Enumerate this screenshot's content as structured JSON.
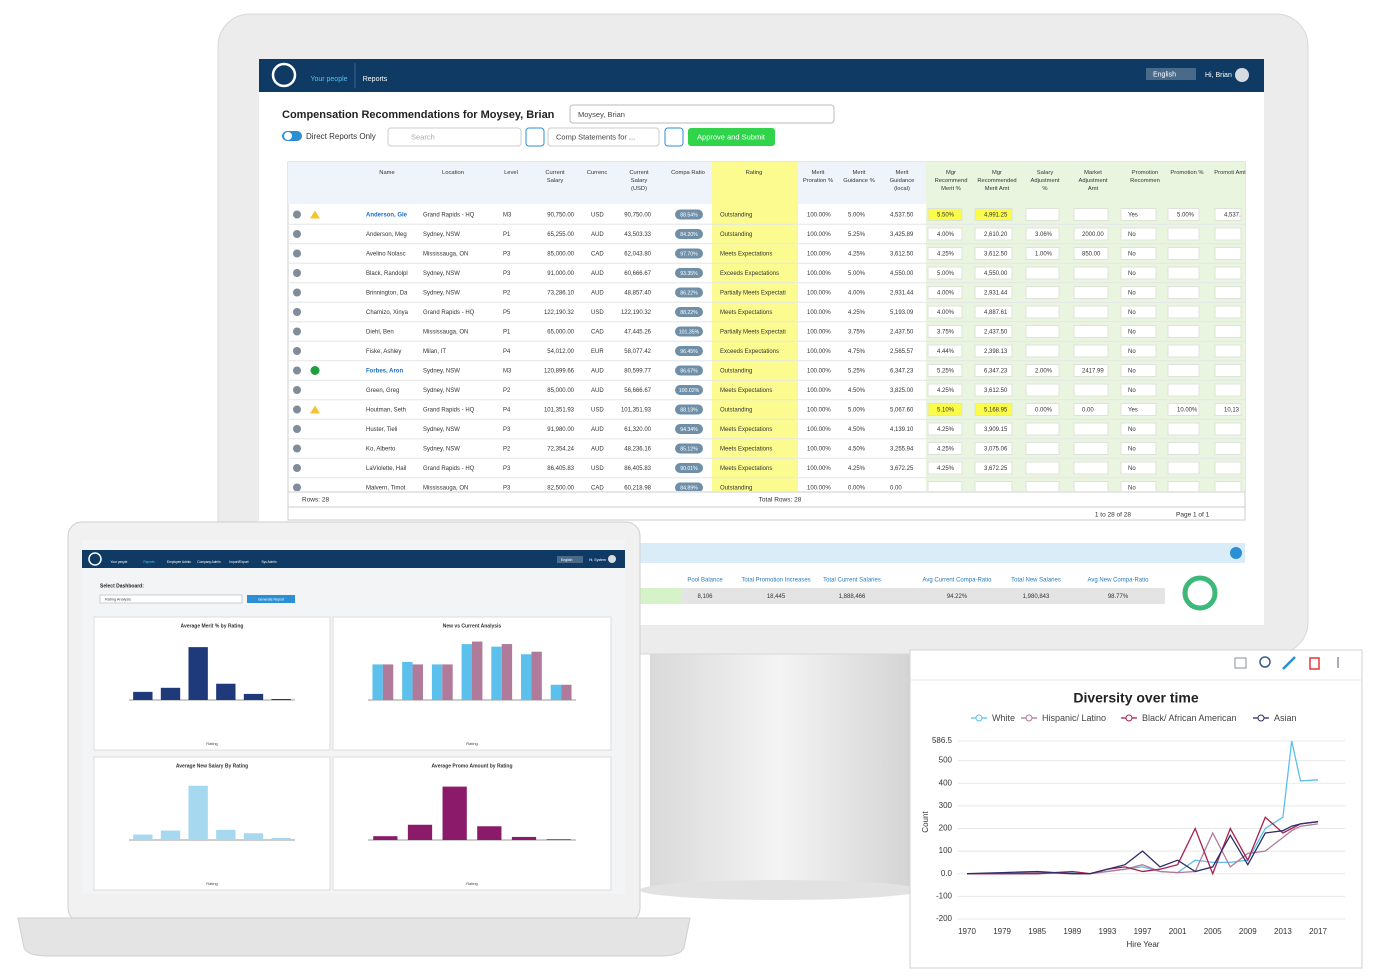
{
  "header": {
    "nav": [
      "Your people",
      "Reports"
    ],
    "language": "English",
    "greeting": "Hi, Brian"
  },
  "toolbar": {
    "title": "Compensation Recommendations for Moysey, Brian",
    "employee_select": "Moysey, Brian",
    "toggle": "Direct Reports Only",
    "search": "Search",
    "statements": "Comp Statements for ...",
    "approve": "Approve and Submit"
  },
  "table": {
    "columns": [
      "Name",
      "Location",
      "Level",
      "Current Salary",
      "Currenc",
      "Current Salary (USD)",
      "Compa Ratio",
      "Rating",
      "Merit Proration %",
      "Merit Guidance %",
      "Merit Guidance (local)",
      "Mgr Recommend Merit %",
      "Mgr Recommended Merit Amt",
      "Salary Adjustment %",
      "Market Adjustment Amt",
      "Promotion Recommen",
      "Promotion %",
      "Promoti Amt"
    ],
    "rows": [
      [
        "Anderson, Gle",
        "Grand Rapids - HQ",
        "M3",
        "90,750.00",
        "USD",
        "90,750.00",
        "88.54%",
        "Outstanding",
        "100.00%",
        "5.00%",
        "4,537.50",
        "5.50%",
        "4,991.25",
        null,
        null,
        "Yes",
        "5.00%",
        "4,537."
      ],
      [
        "Anderson, Meg",
        "Sydney, NSW",
        "P1",
        "65,255.00",
        "AUD",
        "43,503.33",
        "84.20%",
        "Outstanding",
        "100.00%",
        "5.25%",
        "3,425.89",
        "4.00%",
        "2,610.20",
        "3.06%",
        "2000.00",
        "No",
        null,
        null
      ],
      [
        "Avelino Nolasc",
        "Mississauga, ON",
        "P3",
        "85,000.00",
        "CAD",
        "62,043.80",
        "97.70%",
        "Meets Expectations",
        "100.00%",
        "4.25%",
        "3,612.50",
        "4.25%",
        "3,612.50",
        "1.00%",
        "850.00",
        "No",
        null,
        null
      ],
      [
        "Black, Randolpl",
        "Sydney, NSW",
        "P3",
        "91,000.00",
        "AUD",
        "60,666.67",
        "93.35%",
        "Exceeds Expectations",
        "100.00%",
        "5.00%",
        "4,550.00",
        "5.00%",
        "4,550.00",
        null,
        null,
        "No",
        null,
        null
      ],
      [
        "Brinnington, Da",
        "Sydney, NSW",
        "P2",
        "73,286.10",
        "AUD",
        "48,857.40",
        "86.22%",
        "Partially Meets Expectati",
        "100.00%",
        "4.00%",
        "2,931.44",
        "4.00%",
        "2,931.44",
        null,
        null,
        "No",
        null,
        null
      ],
      [
        "Chamizo, Xinya",
        "Grand Rapids - HQ",
        "P5",
        "122,190.32",
        "USD",
        "122,190.32",
        "88.22%",
        "Meets Expectations",
        "100.00%",
        "4.25%",
        "5,193.09",
        "4.00%",
        "4,887.61",
        null,
        null,
        "No",
        null,
        null
      ],
      [
        "Diehl, Ben",
        "Mississauga, ON",
        "P1",
        "65,000.00",
        "CAD",
        "47,445.26",
        "101.35%",
        "Partially Meets Expectati",
        "100.00%",
        "3.75%",
        "2,437.50",
        "3.75%",
        "2,437.50",
        null,
        null,
        "No",
        null,
        null
      ],
      [
        "Fiske, Ashley",
        "Milan, IT",
        "P4",
        "54,012.00",
        "EUR",
        "58,077.42",
        "96.45%",
        "Exceeds Expectations",
        "100.00%",
        "4.75%",
        "2,565.57",
        "4.44%",
        "2,398.13",
        null,
        null,
        "No",
        null,
        null
      ],
      [
        "Forbes, Aron",
        "Sydney, NSW",
        "M3",
        "120,899.66",
        "AUD",
        "80,599.77",
        "86.67%",
        "Outstanding",
        "100.00%",
        "5.25%",
        "6,347.23",
        "5.25%",
        "6,347.23",
        "2.00%",
        "2417.99",
        "No",
        null,
        null
      ],
      [
        "Green, Greg",
        "Sydney, NSW",
        "P2",
        "85,000.00",
        "AUD",
        "56,666.67",
        "100.02%",
        "Meets Expectations",
        "100.00%",
        "4.50%",
        "3,825.00",
        "4.25%",
        "3,612.50",
        null,
        null,
        "No",
        null,
        null
      ],
      [
        "Houtman, Seth",
        "Grand Rapids - HQ",
        "P4",
        "101,351.93",
        "USD",
        "101,351.93",
        "88.13%",
        "Outstanding",
        "100.00%",
        "5.00%",
        "5,067.60",
        "5.10%",
        "5,168.95",
        "0.00%",
        "0.00",
        "Yes",
        "10.00%",
        "10,13"
      ],
      [
        "Huster, Tieli",
        "Sydney, NSW",
        "P3",
        "91,980.00",
        "AUD",
        "61,320.00",
        "94.34%",
        "Meets Expectations",
        "100.00%",
        "4.50%",
        "4,139.10",
        "4.25%",
        "3,909.15",
        null,
        null,
        "No",
        null,
        null
      ],
      [
        "Ko, Alberto",
        "Sydney, NSW",
        "P2",
        "72,354.24",
        "AUD",
        "48,236.16",
        "85.12%",
        "Meets Expectations",
        "100.00%",
        "4.50%",
        "3,255.94",
        "4.25%",
        "3,075.06",
        null,
        null,
        "No",
        null,
        null
      ],
      [
        "LaViolette, Hail",
        "Grand Rapids - HQ",
        "P3",
        "86,405.83",
        "USD",
        "86,405.83",
        "90.01%",
        "Meets Expectations",
        "100.00%",
        "4.25%",
        "3,672.25",
        "4.25%",
        "3,672.25",
        null,
        null,
        "No",
        null,
        null
      ],
      [
        "Malvern, Timot",
        "Mississauga, ON",
        "P3",
        "82,500.00",
        "CAD",
        "60,218.98",
        "84.89%",
        "Outstanding",
        "100.00%",
        "0.00%",
        "0.00",
        null,
        null,
        null,
        null,
        "No",
        null,
        null
      ]
    ],
    "rows_label": "Rows: 28",
    "total_rows": "Total Rows: 28",
    "range": "1 to 28 of 28",
    "page": "Page 1 of 1"
  },
  "summary": {
    "headers": [
      "Pool Balance",
      "Total Promotion Increases",
      "Total Current Salaries",
      "Avg Current Compa-Ratio",
      "Total New Salaries",
      "Avg New Compa-Ratio"
    ],
    "values": [
      "8,106",
      "18,445",
      "1,888,466",
      "94.22%",
      "1,980,843",
      "98.77%"
    ]
  },
  "laptop": {
    "nav": [
      "Your people",
      "Reports",
      "Employee Admin",
      "Company Admin",
      "Import/Export",
      "Sys Admin"
    ],
    "language": "English",
    "greeting": "Hi, System",
    "select_label": "Select Dashboard:",
    "select_value": "Rating Analysis",
    "button": "Generate Report"
  },
  "chart_data": [
    {
      "type": "line",
      "title": "Diversity over time",
      "xlabel": "Hire Year",
      "ylabel": "Count",
      "x": [
        1970,
        1979,
        1985,
        1989,
        1991,
        1993,
        1995,
        1997,
        1999,
        2001,
        2003,
        2005,
        2007,
        2009,
        2011,
        2013,
        2014,
        2015,
        2017
      ],
      "xticks": [
        1970,
        1979,
        1985,
        1989,
        1993,
        1997,
        2001,
        2005,
        2009,
        2013,
        2017
      ],
      "ylim": [
        -200,
        586.5
      ],
      "yticks": [
        586.5,
        500,
        400,
        300,
        200,
        100,
        {
          "value": 0,
          "label": "0.0"
        },
        -100,
        -200
      ],
      "series": [
        {
          "name": "White",
          "color": "#5bc0eb",
          "values": [
            0,
            0,
            0,
            5,
            0,
            10,
            20,
            30,
            10,
            5,
            60,
            50,
            50,
            60,
            200,
            250,
            586.5,
            410,
            415
          ]
        },
        {
          "name": "Hispanic/ Latino",
          "color": "#b07a9a",
          "values": [
            0,
            0,
            5,
            0,
            0,
            10,
            20,
            40,
            10,
            5,
            10,
            180,
            30,
            90,
            100,
            160,
            190,
            210,
            220
          ]
        },
        {
          "name": "Black/ African American",
          "color": "#a8204f",
          "values": [
            0,
            0,
            0,
            10,
            0,
            20,
            30,
            10,
            20,
            40,
            200,
            0,
            200,
            60,
            250,
            180,
            200,
            220,
            230
          ]
        },
        {
          "name": "Asian",
          "color": "#2c2f6b",
          "values": [
            0,
            5,
            10,
            0,
            0,
            20,
            40,
            100,
            30,
            60,
            10,
            30,
            170,
            40,
            180,
            190,
            210,
            220,
            230
          ]
        }
      ]
    },
    {
      "type": "bar",
      "title": "Average Merit % by Rating",
      "xlabel": "Rating",
      "ylim": [
        0,
        3
      ],
      "color": "#1f3a7a",
      "values": [
        0.4,
        0.6,
        2.6,
        0.8,
        0.3,
        0.05
      ]
    },
    {
      "type": "bar",
      "title": "New vs Current Analysis",
      "xlabel": "Rating",
      "ylim": [
        0,
        120
      ],
      "series": [
        {
          "color": "#5bc0eb",
          "values": [
            70,
            75,
            70,
            110,
            105,
            90,
            30
          ]
        },
        {
          "color": "#b07a9a",
          "values": [
            70,
            70,
            70,
            115,
            110,
            95,
            30
          ]
        }
      ]
    },
    {
      "type": "bar",
      "title": "Average New Salary By Rating",
      "xlabel": "Rating",
      "ylim": [
        0,
        90
      ],
      "color": "#a6d8f0",
      "values": [
        8,
        14,
        80,
        15,
        10,
        3
      ]
    },
    {
      "type": "bar",
      "title": "Average Promo Amount by Rating",
      "xlabel": "Rating",
      "ylim": [
        0,
        80
      ],
      "color": "#8b1a6b",
      "values": [
        5,
        20,
        70,
        18,
        4,
        1
      ]
    }
  ]
}
